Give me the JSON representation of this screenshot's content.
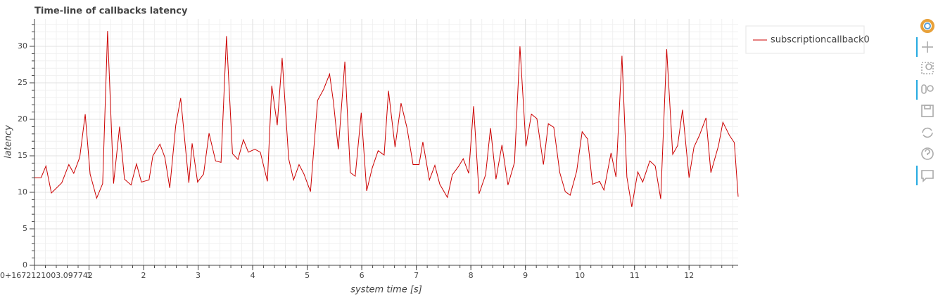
{
  "chart_data": {
    "type": "line",
    "title": "Time-line of callbacks latency",
    "x_label": "system time [s]",
    "y_label": "latency",
    "x": [
      0,
      0.12,
      0.21,
      0.31,
      0.5,
      0.63,
      0.72,
      0.83,
      0.93,
      1.02,
      1.14,
      1.25,
      1.34,
      1.45,
      1.56,
      1.65,
      1.77,
      1.87,
      1.96,
      2.1,
      2.17,
      2.3,
      2.39,
      2.48,
      2.59,
      2.68,
      2.83,
      2.89,
      2.99,
      3.1,
      3.2,
      3.32,
      3.42,
      3.52,
      3.63,
      3.73,
      3.83,
      3.92,
      4.04,
      4.14,
      4.27,
      4.35,
      4.45,
      4.54,
      4.66,
      4.75,
      4.85,
      4.94,
      5.06,
      5.19,
      5.3,
      5.41,
      5.48,
      5.57,
      5.69,
      5.79,
      5.88,
      5.99,
      6.09,
      6.19,
      6.3,
      6.41,
      6.49,
      6.61,
      6.72,
      6.83,
      6.94,
      7.05,
      7.12,
      7.24,
      7.34,
      7.43,
      7.57,
      7.66,
      7.77,
      7.86,
      7.96,
      8.05,
      8.15,
      8.27,
      8.36,
      8.46,
      8.57,
      8.68,
      8.8,
      8.9,
      9.01,
      9.11,
      9.21,
      9.33,
      9.42,
      9.52,
      9.63,
      9.73,
      9.82,
      9.94,
      10.04,
      10.14,
      10.23,
      10.36,
      10.44,
      10.57,
      10.66,
      10.77,
      10.86,
      10.95,
      11.06,
      11.15,
      11.28,
      11.38,
      11.48,
      11.59,
      11.7,
      11.79,
      11.88,
      12.0,
      12.09,
      12.19,
      12.31,
      12.4,
      12.54,
      12.62,
      12.74,
      12.83,
      12.9
    ],
    "series": [
      {
        "name": "subscriptioncallback0",
        "color": "#cc0000",
        "values": [
          12.0,
          12.0,
          13.6,
          9.9,
          11.3,
          13.8,
          12.6,
          14.8,
          20.7,
          12.5,
          9.2,
          11.2,
          32.1,
          11.2,
          19.0,
          11.8,
          11.0,
          13.9,
          11.4,
          11.7,
          15.0,
          16.6,
          14.8,
          10.6,
          19.2,
          22.9,
          11.3,
          16.7,
          11.4,
          12.5,
          18.1,
          14.3,
          14.1,
          31.4,
          15.3,
          14.5,
          17.2,
          15.5,
          15.9,
          15.5,
          11.5,
          24.6,
          19.2,
          28.4,
          14.6,
          11.7,
          13.8,
          12.5,
          10.1,
          22.6,
          24.1,
          26.2,
          22.4,
          15.9,
          27.9,
          12.7,
          12.2,
          20.9,
          10.2,
          13.3,
          15.7,
          15.1,
          23.9,
          16.2,
          22.2,
          18.8,
          13.8,
          13.8,
          16.9,
          11.7,
          13.7,
          11.1,
          9.3,
          12.4,
          13.5,
          14.6,
          12.6,
          21.8,
          9.8,
          12.4,
          18.8,
          11.8,
          16.5,
          11.0,
          14.1,
          30.0,
          16.3,
          20.7,
          20.1,
          13.8,
          19.4,
          18.9,
          12.7,
          10.1,
          9.6,
          12.9,
          18.3,
          17.3,
          11.1,
          11.5,
          10.3,
          15.4,
          12.1,
          28.7,
          12.1,
          8.0,
          12.8,
          11.4,
          14.3,
          13.6,
          9.1,
          29.6,
          15.2,
          16.4,
          21.3,
          12.0,
          16.2,
          17.8,
          20.2,
          12.7,
          16.4,
          19.6,
          17.8,
          16.8,
          9.4
        ]
      }
    ],
    "xlim": [
      0,
      12.9
    ],
    "xticks": [
      {
        "value": 0,
        "label": "0+1672121003.097742"
      },
      1,
      2,
      3,
      4,
      5,
      6,
      7,
      8,
      9,
      10,
      11,
      12
    ],
    "ylim": [
      0,
      33.75
    ],
    "yticks": [
      0,
      5,
      10,
      15,
      20,
      25,
      30
    ],
    "minor_ticks_per_major": 5,
    "grid": true,
    "legend": "right"
  }
}
